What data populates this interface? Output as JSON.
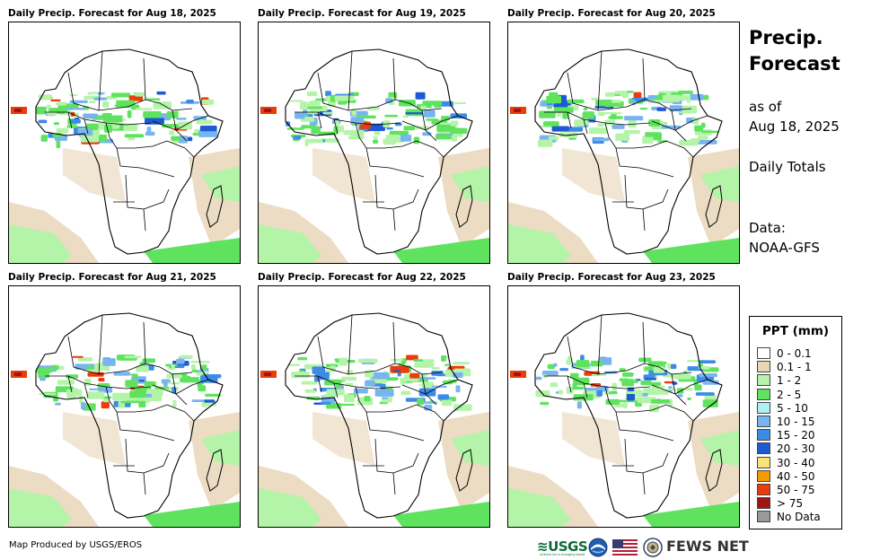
{
  "panels": [
    {
      "title": "Daily Precip. Forecast for Aug 18, 2025",
      "day": 18
    },
    {
      "title": "Daily Precip. Forecast for Aug 19, 2025",
      "day": 19
    },
    {
      "title": "Daily Precip. Forecast for Aug 20, 2025",
      "day": 20
    },
    {
      "title": "Daily Precip. Forecast for Aug 21, 2025",
      "day": 21
    },
    {
      "title": "Daily Precip. Forecast for Aug 22, 2025",
      "day": 22
    },
    {
      "title": "Daily Precip. Forecast for Aug 23, 2025",
      "day": 23
    }
  ],
  "side": {
    "title_line1": "Precip.",
    "title_line2": "Forecast",
    "as_of_line1": "as of",
    "as_of_line2": "Aug 18, 2025",
    "totals": "Daily Totals",
    "data_line1": "Data:",
    "data_line2": "NOAA-GFS"
  },
  "legend": {
    "title": "PPT (mm)",
    "items": [
      {
        "label": "0 - 0.1",
        "color": "#ffffff"
      },
      {
        "label": "0.1 - 1",
        "color": "#e8d6b8"
      },
      {
        "label": "1 - 2",
        "color": "#b4f4a8"
      },
      {
        "label": "2 - 5",
        "color": "#5fe35f"
      },
      {
        "label": "5 - 10",
        "color": "#b0f0f4"
      },
      {
        "label": "10 - 15",
        "color": "#78b4f0"
      },
      {
        "label": "15 - 20",
        "color": "#3c8ce6"
      },
      {
        "label": "20 - 30",
        "color": "#1e5ad2"
      },
      {
        "label": "30 - 40",
        "color": "#fae178"
      },
      {
        "label": "40 - 50",
        "color": "#f59b00"
      },
      {
        "label": "50 - 75",
        "color": "#eb3c0a"
      },
      {
        "label": "> 75",
        "color": "#a01414"
      },
      {
        "label": "No Data",
        "color": "#999999"
      }
    ]
  },
  "footer": {
    "credit": "Map Produced by USGS/EROS",
    "usgs_logo": "≋USGS",
    "usgs_tagline": "science for a changing world",
    "fews_logo": "FEWS NET"
  },
  "icons": [
    "usgs-logo",
    "noaa-logo-icon",
    "us-flag-icon",
    "usaid-seal-icon",
    "fews-net-logo"
  ]
}
